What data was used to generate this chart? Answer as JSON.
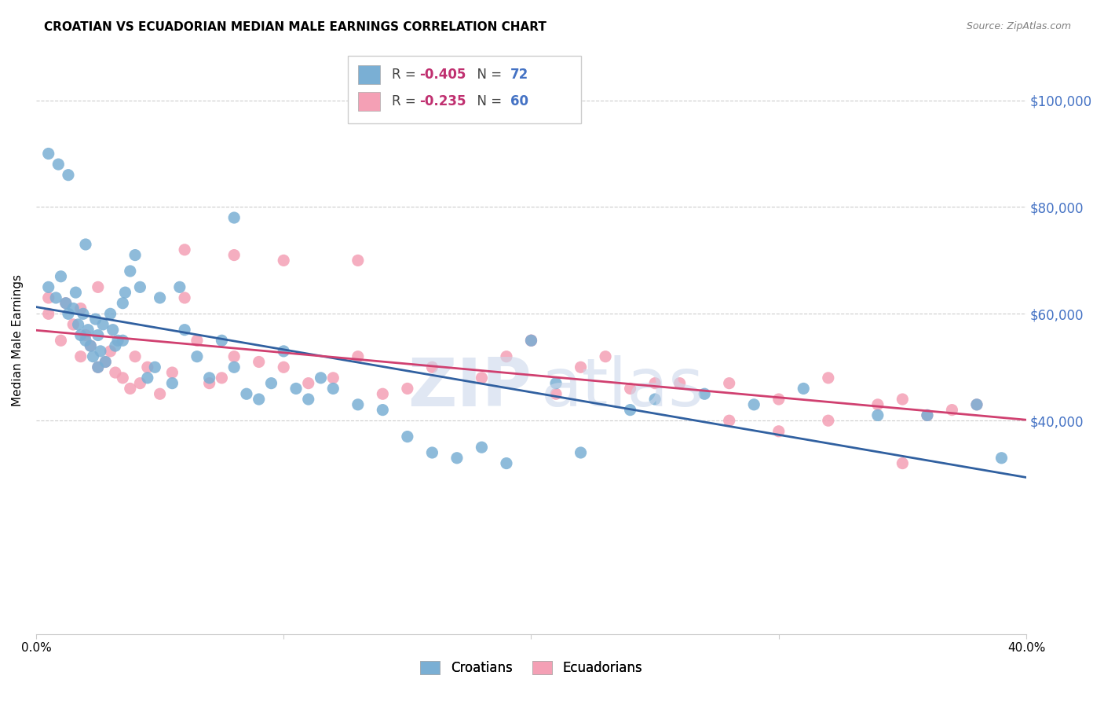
{
  "title": "CROATIAN VS ECUADORIAN MEDIAN MALE EARNINGS CORRELATION CHART",
  "source": "Source: ZipAtlas.com",
  "ylabel": "Median Male Earnings",
  "xlim": [
    0.0,
    0.4
  ],
  "ylim": [
    0,
    110000
  ],
  "yticks": [
    40000,
    60000,
    80000,
    100000
  ],
  "ytick_labels": [
    "$40,000",
    "$60,000",
    "$80,000",
    "$100,000"
  ],
  "xticks": [
    0.0,
    0.1,
    0.2,
    0.3,
    0.4
  ],
  "xtick_labels": [
    "0.0%",
    "",
    "",
    "",
    "40.0%"
  ],
  "croatian_R": "-0.405",
  "croatian_N": "72",
  "ecuadorian_R": "-0.235",
  "ecuadorian_N": "60",
  "croatian_color": "#7aafd4",
  "ecuadorian_color": "#f4a0b5",
  "line_croatian_color": "#3060a0",
  "line_ecuadorian_color": "#d04070",
  "background_color": "#ffffff",
  "croatian_x": [
    0.005,
    0.008,
    0.01,
    0.012,
    0.013,
    0.015,
    0.016,
    0.017,
    0.018,
    0.019,
    0.02,
    0.021,
    0.022,
    0.023,
    0.024,
    0.025,
    0.026,
    0.027,
    0.028,
    0.03,
    0.031,
    0.032,
    0.033,
    0.035,
    0.036,
    0.038,
    0.04,
    0.042,
    0.045,
    0.048,
    0.05,
    0.055,
    0.058,
    0.06,
    0.065,
    0.07,
    0.075,
    0.08,
    0.085,
    0.09,
    0.095,
    0.1,
    0.105,
    0.11,
    0.115,
    0.12,
    0.13,
    0.14,
    0.15,
    0.16,
    0.17,
    0.18,
    0.19,
    0.2,
    0.21,
    0.22,
    0.24,
    0.25,
    0.27,
    0.29,
    0.31,
    0.34,
    0.36,
    0.38,
    0.39,
    0.005,
    0.009,
    0.013,
    0.02,
    0.025,
    0.035,
    0.08
  ],
  "croatian_y": [
    65000,
    63000,
    67000,
    62000,
    60000,
    61000,
    64000,
    58000,
    56000,
    60000,
    55000,
    57000,
    54000,
    52000,
    59000,
    56000,
    53000,
    58000,
    51000,
    60000,
    57000,
    54000,
    55000,
    62000,
    64000,
    68000,
    71000,
    65000,
    48000,
    50000,
    63000,
    47000,
    65000,
    57000,
    52000,
    48000,
    55000,
    50000,
    45000,
    44000,
    47000,
    53000,
    46000,
    44000,
    48000,
    46000,
    43000,
    42000,
    37000,
    34000,
    33000,
    35000,
    32000,
    55000,
    47000,
    34000,
    42000,
    44000,
    45000,
    43000,
    46000,
    41000,
    41000,
    43000,
    33000,
    90000,
    88000,
    86000,
    73000,
    50000,
    55000,
    78000
  ],
  "ecuadorian_x": [
    0.005,
    0.01,
    0.015,
    0.018,
    0.02,
    0.022,
    0.025,
    0.028,
    0.03,
    0.032,
    0.035,
    0.038,
    0.04,
    0.042,
    0.045,
    0.05,
    0.055,
    0.06,
    0.065,
    0.07,
    0.075,
    0.08,
    0.09,
    0.1,
    0.11,
    0.12,
    0.13,
    0.14,
    0.15,
    0.16,
    0.18,
    0.19,
    0.2,
    0.21,
    0.22,
    0.24,
    0.26,
    0.28,
    0.3,
    0.32,
    0.34,
    0.35,
    0.36,
    0.37,
    0.005,
    0.012,
    0.018,
    0.025,
    0.06,
    0.08,
    0.1,
    0.13,
    0.2,
    0.23,
    0.25,
    0.28,
    0.3,
    0.32,
    0.35,
    0.38
  ],
  "ecuadorian_y": [
    60000,
    55000,
    58000,
    52000,
    56000,
    54000,
    50000,
    51000,
    53000,
    49000,
    48000,
    46000,
    52000,
    47000,
    50000,
    45000,
    49000,
    63000,
    55000,
    47000,
    48000,
    52000,
    51000,
    50000,
    47000,
    48000,
    52000,
    45000,
    46000,
    50000,
    48000,
    52000,
    55000,
    45000,
    50000,
    46000,
    47000,
    47000,
    44000,
    48000,
    43000,
    44000,
    41000,
    42000,
    63000,
    62000,
    61000,
    65000,
    72000,
    71000,
    70000,
    70000,
    55000,
    52000,
    47000,
    40000,
    38000,
    40000,
    32000,
    43000
  ]
}
